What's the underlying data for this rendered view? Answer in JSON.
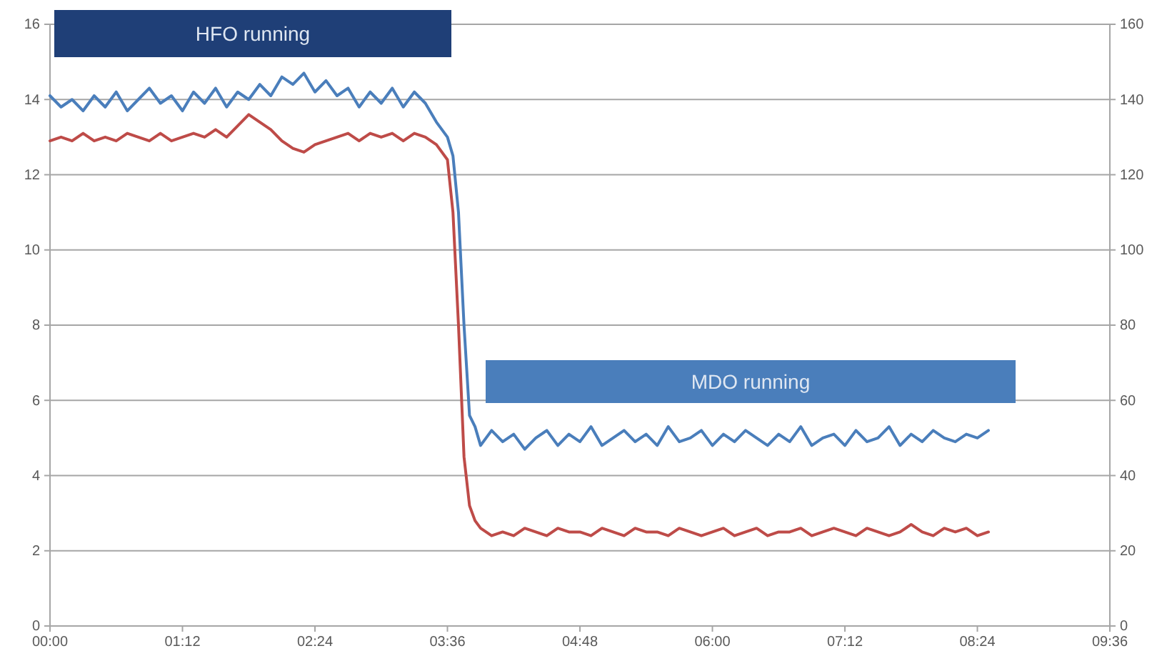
{
  "chart_data": {
    "type": "line",
    "x": [
      0,
      0.1,
      0.2,
      0.3,
      0.4,
      0.5,
      0.6,
      0.7,
      0.8,
      0.9,
      1,
      1.1,
      1.2,
      1.3,
      1.4,
      1.5,
      1.6,
      1.7,
      1.8,
      1.9,
      2,
      2.1,
      2.2,
      2.3,
      2.4,
      2.5,
      2.6,
      2.7,
      2.8,
      2.9,
      3,
      3.1,
      3.2,
      3.3,
      3.4,
      3.5,
      3.6,
      3.65,
      3.7,
      3.75,
      3.8,
      3.85,
      3.9,
      4,
      4.1,
      4.2,
      4.3,
      4.4,
      4.5,
      4.6,
      4.7,
      4.8,
      4.9,
      5,
      5.1,
      5.2,
      5.3,
      5.4,
      5.5,
      5.6,
      5.7,
      5.8,
      5.9,
      6,
      6.1,
      6.2,
      6.3,
      6.4,
      6.5,
      6.6,
      6.7,
      6.8,
      6.9,
      7,
      7.1,
      7.2,
      7.3,
      7.4,
      7.5,
      7.6,
      7.7,
      7.8,
      7.9,
      8,
      8.1,
      8.2,
      8.3,
      8.4,
      8.5
    ],
    "series": [
      {
        "color": "#4a7ebb",
        "values": [
          14.1,
          13.8,
          14.0,
          13.7,
          14.1,
          13.8,
          14.2,
          13.7,
          14.0,
          14.3,
          13.9,
          14.1,
          13.7,
          14.2,
          13.9,
          14.3,
          13.8,
          14.2,
          14.0,
          14.4,
          14.1,
          14.6,
          14.4,
          14.7,
          14.2,
          14.5,
          14.1,
          14.3,
          13.8,
          14.2,
          13.9,
          14.3,
          13.8,
          14.2,
          13.9,
          13.4,
          13.0,
          12.5,
          11,
          8,
          5.6,
          5.3,
          4.8,
          5.2,
          4.9,
          5.1,
          4.7,
          5.0,
          5.2,
          4.8,
          5.1,
          4.9,
          5.3,
          4.8,
          5.0,
          5.2,
          4.9,
          5.1,
          4.8,
          5.3,
          4.9,
          5.0,
          5.2,
          4.8,
          5.1,
          4.9,
          5.2,
          5.0,
          4.8,
          5.1,
          4.9,
          5.3,
          4.8,
          5.0,
          5.1,
          4.8,
          5.2,
          4.9,
          5.0,
          5.3,
          4.8,
          5.1,
          4.9,
          5.2,
          5.0,
          4.9,
          5.1,
          5.0,
          5.2
        ]
      },
      {
        "color": "#be4b48",
        "values": [
          12.9,
          13.0,
          12.9,
          13.1,
          12.9,
          13.0,
          12.9,
          13.1,
          13.0,
          12.9,
          13.1,
          12.9,
          13.0,
          13.1,
          13.0,
          13.2,
          13.0,
          13.3,
          13.6,
          13.4,
          13.2,
          12.9,
          12.7,
          12.6,
          12.8,
          12.9,
          13.0,
          13.1,
          12.9,
          13.1,
          13.0,
          13.1,
          12.9,
          13.1,
          13.0,
          12.8,
          12.4,
          11,
          8,
          4.5,
          3.2,
          2.8,
          2.6,
          2.4,
          2.5,
          2.4,
          2.6,
          2.5,
          2.4,
          2.6,
          2.5,
          2.5,
          2.4,
          2.6,
          2.5,
          2.4,
          2.6,
          2.5,
          2.5,
          2.4,
          2.6,
          2.5,
          2.4,
          2.5,
          2.6,
          2.4,
          2.5,
          2.6,
          2.4,
          2.5,
          2.5,
          2.6,
          2.4,
          2.5,
          2.6,
          2.5,
          2.4,
          2.6,
          2.5,
          2.4,
          2.5,
          2.7,
          2.5,
          2.4,
          2.6,
          2.5,
          2.6,
          2.4,
          2.5
        ]
      }
    ],
    "xlim": [
      0,
      9.6
    ],
    "xticks": [
      {
        "value": 0,
        "label": "00:00"
      },
      {
        "value": 1.2,
        "label": "01:12"
      },
      {
        "value": 2.4,
        "label": "02:24"
      },
      {
        "value": 3.6,
        "label": "03:36"
      },
      {
        "value": 4.8,
        "label": "04:48"
      },
      {
        "value": 6,
        "label": "06:00"
      },
      {
        "value": 7.2,
        "label": "07:12"
      },
      {
        "value": 8.4,
        "label": "08:24"
      },
      {
        "value": 9.6,
        "label": "09:36"
      }
    ],
    "ylim": [
      0,
      16
    ],
    "yticks": [
      0,
      2,
      4,
      6,
      8,
      10,
      12,
      14,
      16
    ],
    "y2lim": [
      0,
      160
    ],
    "y2ticks": [
      0,
      20,
      40,
      60,
      80,
      100,
      120,
      140,
      160
    ],
    "grid": "y",
    "marker": "none",
    "line_style": "solid",
    "annotations": [
      "HFO running",
      "MDO running"
    ]
  }
}
